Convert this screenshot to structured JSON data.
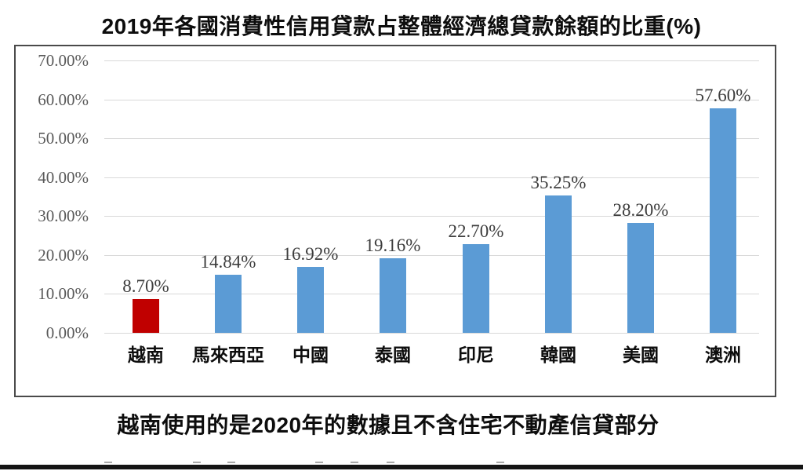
{
  "title": "2019年各國消費性信用貸款占整體經濟總貸款餘額的比重(%)",
  "footnote": "越南使用的是2020年的數據且不含住宅不動產信貸部分",
  "colors": {
    "bar_default": "#5b9bd5",
    "bar_highlight": "#c00000",
    "gridline": "#d9d9d9",
    "axis_text": "#595959",
    "data_label_text": "#3d3d3d",
    "frame_border": "#4a4a4a",
    "text": "#0d0d0d"
  },
  "chart_data": {
    "type": "bar",
    "title": "2019年各國消費性信用貸款占整體經濟總貸款餘額的比重(%)",
    "categories": [
      "越南",
      "馬來西亞",
      "中國",
      "泰國",
      "印尼",
      "韓國",
      "美國",
      "澳洲"
    ],
    "values": [
      8.7,
      14.84,
      16.92,
      19.16,
      22.7,
      35.25,
      28.2,
      57.6
    ],
    "data_labels": [
      "8.70%",
      "14.84%",
      "16.92%",
      "19.16%",
      "22.70%",
      "35.25%",
      "28.20%",
      "57.60%"
    ],
    "highlight_index": 0,
    "highlight_color": "#c00000",
    "bar_color": "#5b9bd5",
    "xlabel": "",
    "ylabel": "",
    "ylim": [
      0,
      70
    ],
    "ytick_step": 10,
    "ytick_labels": [
      "0.00%",
      "10.00%",
      "20.00%",
      "30.00%",
      "40.00%",
      "50.00%",
      "60.00%",
      "70.00%"
    ],
    "grid": true,
    "legend": false,
    "annotation": "越南使用的是2020年的數據且不含住宅不動產信貸部分"
  }
}
